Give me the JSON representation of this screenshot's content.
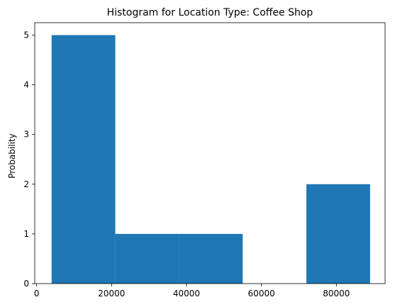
{
  "chart_data": {
    "type": "bar",
    "title": "Histogram for Location Type: Coffee Shop",
    "xlabel": "",
    "ylabel": "Probability",
    "xlim": [
      -500,
      93000
    ],
    "ylim": [
      0,
      5.25
    ],
    "xticks": [
      0,
      20000,
      40000,
      60000,
      80000
    ],
    "xtick_labels": [
      "0",
      "20000",
      "40000",
      "60000",
      "80000"
    ],
    "yticks": [
      0,
      1,
      2,
      3,
      4,
      5
    ],
    "ytick_labels": [
      "0",
      "1",
      "2",
      "3",
      "4",
      "5"
    ],
    "bins": [
      {
        "x0": 4000,
        "x1": 21000,
        "value": 5
      },
      {
        "x0": 21000,
        "x1": 38000,
        "value": 1
      },
      {
        "x0": 38000,
        "x1": 55000,
        "value": 1
      },
      {
        "x0": 55000,
        "x1": 72000,
        "value": 0
      },
      {
        "x0": 72000,
        "x1": 89000,
        "value": 2
      }
    ],
    "bar_color": "#1f77b4",
    "grid": false,
    "legend": false
  }
}
